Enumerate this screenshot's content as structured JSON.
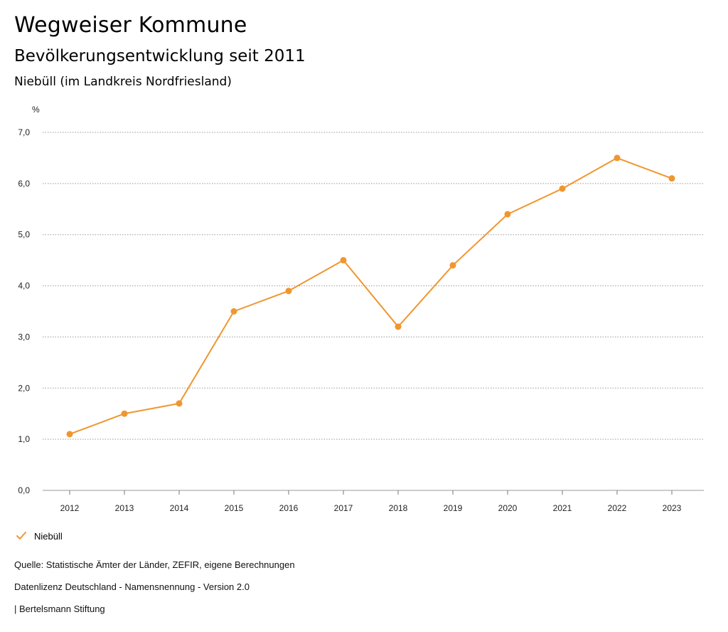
{
  "header": {
    "title": "Wegweiser Kommune",
    "subtitle": "Bevölkerungsentwicklung seit 2011",
    "region": "Niebüll (im Landkreis Nordfriesland)"
  },
  "legend": {
    "series_label": "Niebüll"
  },
  "footer": {
    "source": "Quelle: Statistische Ämter der Länder, ZEFIR, eigene Berechnungen",
    "license": "Datenlizenz Deutschland - Namensnennung - Version 2.0",
    "publisher": "| Bertelsmann Stiftung"
  },
  "colors": {
    "series": "#f0962f",
    "grid": "#9a9a9a",
    "axis": "#777777"
  },
  "chart_data": {
    "type": "line",
    "title": "Bevölkerungsentwicklung seit 2011",
    "ylabel": "%",
    "xlabel": "",
    "ylim": [
      0,
      7
    ],
    "yticks": [
      0,
      1,
      2,
      3,
      4,
      5,
      6,
      7
    ],
    "ytick_labels": [
      "0,0",
      "1,0",
      "2,0",
      "3,0",
      "4,0",
      "5,0",
      "6,0",
      "7,0"
    ],
    "grid": true,
    "legend_position": "bottom-left",
    "categories": [
      "2012",
      "2013",
      "2014",
      "2015",
      "2016",
      "2017",
      "2018",
      "2019",
      "2020",
      "2021",
      "2022",
      "2023"
    ],
    "series": [
      {
        "name": "Niebüll",
        "values": [
          1.1,
          1.5,
          1.7,
          3.5,
          3.9,
          4.5,
          3.2,
          4.4,
          5.4,
          5.9,
          6.5,
          6.1
        ]
      }
    ]
  }
}
